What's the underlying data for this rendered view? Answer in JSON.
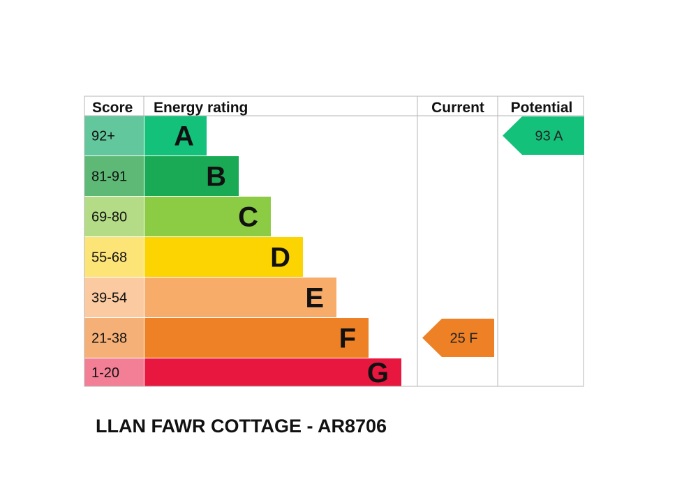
{
  "chart_data": {
    "type": "table",
    "headers": {
      "score": "Score",
      "rating": "Energy rating",
      "current": "Current",
      "potential": "Potential"
    },
    "bands": [
      {
        "score": "92+",
        "letter": "A",
        "score_color": "#62c79c",
        "bar_color": "#14c17b",
        "text_color": "#111111"
      },
      {
        "score": "81-91",
        "letter": "B",
        "score_color": "#5db975",
        "bar_color": "#1aaa55",
        "text_color": "#111111"
      },
      {
        "score": "69-80",
        "letter": "C",
        "score_color": "#b4dc87",
        "bar_color": "#8ccc44",
        "text_color": "#111111"
      },
      {
        "score": "55-68",
        "letter": "D",
        "score_color": "#fde477",
        "bar_color": "#fcd402",
        "text_color": "#111111"
      },
      {
        "score": "39-54",
        "letter": "E",
        "score_color": "#fbcaa1",
        "bar_color": "#f8ac6a",
        "text_color": "#111111"
      },
      {
        "score": "21-38",
        "letter": "F",
        "score_color": "#f4b077",
        "bar_color": "#ee8026",
        "text_color": "#111111"
      },
      {
        "score": "1-20",
        "letter": "G",
        "score_color": "#f27f95",
        "bar_color": "#e8173f",
        "text_color": "#111111"
      }
    ],
    "current": {
      "value": 25,
      "band": "F",
      "label": "25  F",
      "color": "#ee8026"
    },
    "potential": {
      "value": 93,
      "band": "A",
      "label": "93  A",
      "color": "#14c17b"
    }
  },
  "caption": "LLAN FAWR COTTAGE - AR8706"
}
